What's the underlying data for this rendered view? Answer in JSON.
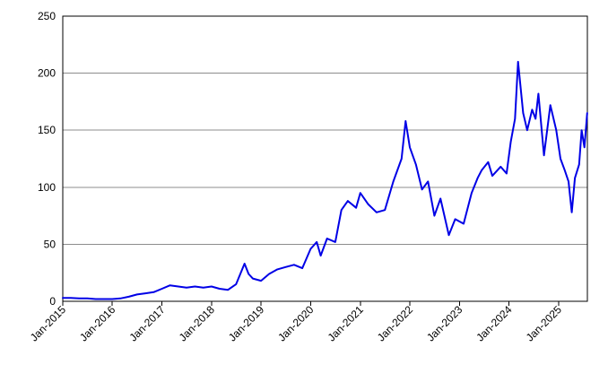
{
  "chart_data": {
    "type": "line",
    "title": "",
    "xlabel": "",
    "ylabel": "",
    "ylim": [
      0,
      250
    ],
    "yticks": [
      0,
      50,
      100,
      150,
      200,
      250
    ],
    "xlim": [
      "2015-01-01",
      "2025-08-01"
    ],
    "xtick_labels": [
      "Jan-2015",
      "Jan-2016",
      "Jan-2017",
      "Jan-2018",
      "Jan-2019",
      "Jan-2020",
      "Jan-2021",
      "Jan-2022",
      "Jan-2023",
      "Jan-2024",
      "Jan-2025"
    ],
    "xtick_dates": [
      "2015-01-01",
      "2016-01-01",
      "2017-01-01",
      "2018-01-01",
      "2019-01-01",
      "2020-01-01",
      "2021-01-01",
      "2022-01-01",
      "2023-01-01",
      "2024-01-01",
      "2025-01-01"
    ],
    "grid": true,
    "legend": "none",
    "colors": {
      "series": "#0000e6",
      "grid": "#8c8c8c",
      "axis": "#000000"
    },
    "series": [
      {
        "x": [
          "2015-01-01",
          "2015-03-01",
          "2015-05-01",
          "2015-07-01",
          "2015-09-01",
          "2015-11-01",
          "2016-01-01",
          "2016-03-01",
          "2016-05-01",
          "2016-07-01",
          "2016-09-01",
          "2016-11-01",
          "2017-01-01",
          "2017-03-01",
          "2017-05-01",
          "2017-07-01",
          "2017-09-01",
          "2017-11-01",
          "2018-01-01",
          "2018-03-01",
          "2018-05-01",
          "2018-07-01",
          "2018-09-01",
          "2018-10-01",
          "2018-11-01",
          "2019-01-01",
          "2019-03-01",
          "2019-05-01",
          "2019-07-01",
          "2019-09-01",
          "2019-11-01",
          "2020-01-01",
          "2020-02-15",
          "2020-03-15",
          "2020-05-01",
          "2020-07-01",
          "2020-08-15",
          "2020-10-01",
          "2020-12-01",
          "2021-01-01",
          "2021-03-01",
          "2021-05-01",
          "2021-07-01",
          "2021-09-01",
          "2021-11-01",
          "2021-12-01",
          "2022-01-01",
          "2022-02-15",
          "2022-04-01",
          "2022-05-15",
          "2022-07-01",
          "2022-08-15",
          "2022-10-15",
          "2022-12-01",
          "2023-02-01",
          "2023-04-01",
          "2023-05-15",
          "2023-06-15",
          "2023-08-01",
          "2023-09-01",
          "2023-11-01",
          "2023-12-15",
          "2024-01-15",
          "2024-02-15",
          "2024-03-08",
          "2024-04-15",
          "2024-05-15",
          "2024-06-20",
          "2024-07-15",
          "2024-08-05",
          "2024-09-15",
          "2024-11-01",
          "2024-12-15",
          "2025-01-15",
          "2025-02-15",
          "2025-03-15",
          "2025-04-08",
          "2025-05-01",
          "2025-06-01",
          "2025-06-20",
          "2025-07-10",
          "2025-07-31"
        ],
        "values": [
          3,
          3,
          2.5,
          2.5,
          2,
          2,
          2,
          2.5,
          4,
          6,
          7,
          8,
          11,
          14,
          13,
          12,
          13,
          12,
          13,
          11,
          10,
          15,
          33,
          24,
          20,
          18,
          24,
          28,
          30,
          32,
          29,
          46,
          52,
          40,
          55,
          52,
          80,
          88,
          82,
          95,
          85,
          78,
          80,
          105,
          125,
          158,
          135,
          120,
          98,
          105,
          75,
          90,
          58,
          72,
          68,
          95,
          108,
          115,
          122,
          110,
          118,
          112,
          140,
          160,
          210,
          165,
          150,
          168,
          160,
          182,
          128,
          172,
          150,
          125,
          115,
          105,
          78,
          108,
          120,
          150,
          135,
          165
        ]
      }
    ]
  }
}
